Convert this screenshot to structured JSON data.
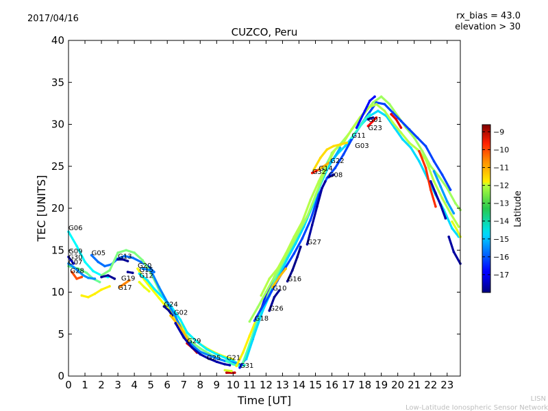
{
  "header": {
    "date": "2017/04/16",
    "rx_bias": "rx_bias = 43.0",
    "elevation": "elevation > 30"
  },
  "footer": {
    "org_short": "LISN",
    "org_full": "Low-Latitude Ionospheric Sensor Network"
  },
  "chart_data": {
    "type": "scatter",
    "title": "CUZCO, Peru",
    "xlabel": "Time [UT]",
    "ylabel": "TEC [UNITS]",
    "xlim": [
      0,
      23.8
    ],
    "ylim": [
      0,
      40
    ],
    "xticks": [
      0,
      1,
      2,
      3,
      4,
      5,
      6,
      7,
      8,
      9,
      10,
      11,
      12,
      13,
      14,
      15,
      16,
      17,
      18,
      19,
      20,
      21,
      22,
      23
    ],
    "yticks": [
      0,
      5,
      10,
      15,
      20,
      25,
      30,
      35,
      40
    ],
    "grid": false,
    "colorbar": {
      "label": "Latitude",
      "min": -18,
      "max": -8.6,
      "ticks": [
        -17,
        -16,
        -15,
        -14,
        -13,
        -12,
        -11,
        -10,
        -9
      ],
      "tick_labels": [
        "−17",
        "−16",
        "−15",
        "−14",
        "−13",
        "−12",
        "−11",
        "−10",
        "−9"
      ]
    },
    "labels": [
      {
        "text": "G06",
        "x": 0.0,
        "y": 17.4
      },
      {
        "text": "G09",
        "x": 0.0,
        "y": 14.6
      },
      {
        "text": "G30",
        "x": 0.0,
        "y": 13.9
      },
      {
        "text": "G07",
        "x": 0.0,
        "y": 13.3
      },
      {
        "text": "G05",
        "x": 1.4,
        "y": 14.4
      },
      {
        "text": "G28",
        "x": 0.1,
        "y": 12.3
      },
      {
        "text": "G13",
        "x": 3.0,
        "y": 14.0
      },
      {
        "text": "G20",
        "x": 4.2,
        "y": 12.9
      },
      {
        "text": "G15",
        "x": 4.3,
        "y": 12.4
      },
      {
        "text": "G12",
        "x": 4.3,
        "y": 11.7
      },
      {
        "text": "G19",
        "x": 3.2,
        "y": 11.4
      },
      {
        "text": "G17",
        "x": 3.0,
        "y": 10.3
      },
      {
        "text": "G24",
        "x": 5.8,
        "y": 8.3
      },
      {
        "text": "G02",
        "x": 6.4,
        "y": 7.3
      },
      {
        "text": "G29",
        "x": 7.2,
        "y": 3.9
      },
      {
        "text": "G25",
        "x": 8.4,
        "y": 1.9
      },
      {
        "text": "G21",
        "x": 9.6,
        "y": 1.9
      },
      {
        "text": "G31",
        "x": 10.4,
        "y": 1.0
      },
      {
        "text": "G18",
        "x": 11.3,
        "y": 6.6
      },
      {
        "text": "G26",
        "x": 12.2,
        "y": 7.8
      },
      {
        "text": "G10",
        "x": 12.4,
        "y": 10.2
      },
      {
        "text": "G16",
        "x": 13.3,
        "y": 11.3
      },
      {
        "text": "G27",
        "x": 14.5,
        "y": 15.7
      },
      {
        "text": "G32",
        "x": 14.8,
        "y": 24.1
      },
      {
        "text": "G14",
        "x": 15.2,
        "y": 24.5
      },
      {
        "text": "G22",
        "x": 15.9,
        "y": 25.4
      },
      {
        "text": "G08",
        "x": 15.8,
        "y": 23.7
      },
      {
        "text": "G11",
        "x": 17.2,
        "y": 28.4
      },
      {
        "text": "G03",
        "x": 17.4,
        "y": 27.2
      },
      {
        "text": "G01",
        "x": 18.2,
        "y": 30.3
      },
      {
        "text": "G23",
        "x": 18.2,
        "y": 29.3
      }
    ],
    "series": [
      {
        "lat": -14.5,
        "x": [
          0.0,
          0.5,
          1.0,
          1.5,
          2.0,
          2.4
        ],
        "y": [
          17.2,
          15.5,
          13.6,
          12.5,
          12.0,
          11.8
        ]
      },
      {
        "lat": -13.5,
        "x": [
          0.0,
          0.6,
          1.1,
          1.5,
          1.9
        ],
        "y": [
          13.1,
          12.8,
          12.3,
          11.6,
          11.2
        ]
      },
      {
        "lat": -17.0,
        "x": [
          0.0,
          0.3
        ],
        "y": [
          14.2,
          13.4
        ]
      },
      {
        "lat": -15.5,
        "x": [
          0.0,
          0.3,
          0.6,
          0.9,
          1.2,
          1.6
        ],
        "y": [
          13.4,
          13.0,
          12.5,
          12.0,
          11.7,
          11.6
        ]
      },
      {
        "lat": -10.5,
        "x": [
          0.2,
          0.5,
          0.8
        ],
        "y": [
          12.4,
          11.6,
          11.8
        ]
      },
      {
        "lat": -12.0,
        "x": [
          0.8,
          1.2,
          1.6,
          2.0,
          2.5
        ],
        "y": [
          9.6,
          9.4,
          9.8,
          10.3,
          10.7
        ]
      },
      {
        "lat": -15.8,
        "x": [
          1.4,
          1.8,
          2.2,
          2.6,
          3.0,
          3.4,
          3.9,
          4.4,
          4.9,
          5.2
        ],
        "y": [
          14.4,
          13.6,
          13.1,
          13.3,
          14.0,
          14.3,
          14.1,
          13.6,
          13.0,
          12.4
        ]
      },
      {
        "lat": -13.3,
        "x": [
          2.0,
          2.5,
          3.0,
          3.5,
          4.0,
          4.5,
          5.0,
          5.5,
          6.0,
          6.5,
          7.0,
          7.5,
          8.0,
          8.5,
          9.0,
          9.5,
          10.0,
          10.5
        ],
        "y": [
          12.0,
          12.6,
          14.7,
          15.0,
          14.7,
          13.8,
          12.3,
          10.3,
          8.5,
          7.0,
          5.3,
          4.0,
          3.3,
          2.7,
          2.2,
          1.8,
          1.5,
          1.3
        ]
      },
      {
        "lat": -12.2,
        "x": [
          4.2,
          4.6,
          5.0,
          5.5,
          6.0,
          6.5,
          7.0,
          7.5,
          8.0,
          8.5,
          9.0,
          9.5,
          10.0
        ],
        "y": [
          12.8,
          11.5,
          10.5,
          9.3,
          8.1,
          6.9,
          5.6,
          4.6,
          3.8,
          3.2,
          2.7,
          2.3,
          2.0
        ]
      },
      {
        "lat": -14.6,
        "x": [
          4.3,
          4.8,
          5.2,
          5.8,
          6.2,
          6.8,
          7.2,
          7.8,
          8.4,
          9.0,
          9.6,
          10.2
        ],
        "y": [
          12.2,
          11.4,
          10.4,
          9.2,
          8.4,
          6.7,
          5.2,
          4.1,
          3.2,
          2.6,
          2.1,
          1.6
        ]
      },
      {
        "lat": -15.6,
        "x": [
          4.5,
          5.0,
          5.5,
          6.0,
          6.5,
          7.0,
          7.5,
          8.0,
          8.5,
          9.0,
          9.5,
          10.0,
          10.4
        ],
        "y": [
          12.8,
          12.6,
          10.6,
          8.8,
          7.1,
          5.0,
          3.7,
          2.9,
          2.5,
          2.1,
          1.8,
          1.6,
          1.4
        ]
      },
      {
        "lat": -17.8,
        "x": [
          2.0,
          2.4,
          2.8
        ],
        "y": [
          11.8,
          12.0,
          11.6
        ]
      },
      {
        "lat": -17.8,
        "x": [
          3.0,
          3.3,
          3.6
        ],
        "y": [
          13.9,
          13.9,
          13.7
        ]
      },
      {
        "lat": -17.8,
        "x": [
          3.6,
          3.9
        ],
        "y": [
          12.4,
          12.3
        ]
      },
      {
        "lat": -11.0,
        "x": [
          3.1,
          3.4,
          3.7
        ],
        "y": [
          10.6,
          11.0,
          11.4
        ]
      },
      {
        "lat": -12.3,
        "x": [
          4.3,
          4.6,
          4.9
        ],
        "y": [
          11.2,
          10.6,
          10.1
        ]
      },
      {
        "lat": -17.9,
        "x": [
          5.8,
          6.1,
          6.3
        ],
        "y": [
          8.3,
          7.8,
          7.2
        ]
      },
      {
        "lat": -11.5,
        "x": [
          6.2,
          6.7,
          7.0,
          7.3
        ],
        "y": [
          7.2,
          6.0,
          5.2,
          4.2
        ]
      },
      {
        "lat": -9.5,
        "x": [
          7.2,
          7.5,
          7.8
        ],
        "y": [
          3.9,
          3.4,
          2.8
        ]
      },
      {
        "lat": -17.6,
        "x": [
          6.5,
          7.0,
          7.5,
          8.0,
          8.5,
          9.0,
          9.5,
          9.8
        ],
        "y": [
          6.3,
          4.6,
          3.4,
          2.6,
          2.1,
          1.7,
          1.4,
          1.3
        ]
      },
      {
        "lat": -9.2,
        "x": [
          9.6,
          9.9,
          10.1
        ],
        "y": [
          0.4,
          0.4,
          0.4
        ]
      },
      {
        "lat": -12.5,
        "x": [
          9.5,
          9.9
        ],
        "y": [
          0.7,
          0.6
        ]
      },
      {
        "lat": -14.0,
        "x": [
          9.6,
          10.0,
          10.4,
          10.7
        ],
        "y": [
          1.8,
          1.4,
          1.2,
          1.3
        ]
      },
      {
        "lat": -12.0,
        "x": [
          10.2,
          10.6,
          11.0,
          11.5,
          12.0,
          12.5,
          13.0,
          13.4
        ],
        "y": [
          1.2,
          2.8,
          4.8,
          7.2,
          9.5,
          11.5,
          13.6,
          14.8
        ]
      },
      {
        "lat": -16.6,
        "x": [
          10.4,
          10.8,
          11.2,
          11.6,
          12.0,
          12.5,
          13.0,
          13.5,
          14.0,
          14.5,
          15.0
        ],
        "y": [
          1.0,
          2.2,
          4.4,
          7.2,
          9.8,
          11.8,
          13.6,
          15.4,
          17.2,
          19.0,
          21.2
        ]
      },
      {
        "lat": -13.7,
        "x": [
          10.6,
          11.0,
          11.5,
          12.0,
          12.5,
          13.0,
          13.5,
          14.0,
          14.5,
          15.0,
          15.5,
          16.0
        ],
        "y": [
          1.6,
          3.8,
          6.8,
          9.0,
          11.2,
          13.4,
          15.2,
          17.0,
          18.8,
          21.0,
          24.6,
          26.5
        ]
      },
      {
        "lat": -14.8,
        "x": [
          10.8,
          11.3,
          11.8,
          12.3,
          12.8,
          13.3,
          13.8,
          14.3,
          14.8,
          15.3,
          15.8,
          16.3,
          16.8,
          17.3,
          17.8,
          18.3,
          18.8,
          19.3,
          19.8,
          20.3,
          20.8,
          21.3,
          21.8,
          22.3,
          22.8,
          23.3,
          23.7
        ],
        "y": [
          2.0,
          5.0,
          7.8,
          10.0,
          12.0,
          14.0,
          15.8,
          17.8,
          20.2,
          22.8,
          25.0,
          26.4,
          27.4,
          28.6,
          30.0,
          31.0,
          31.6,
          31.0,
          29.6,
          28.2,
          27.2,
          25.6,
          23.6,
          21.6,
          19.8,
          17.6,
          16.6
        ]
      },
      {
        "lat": -13.0,
        "x": [
          11.0,
          11.5,
          12.0,
          12.5,
          13.0,
          13.5,
          14.0,
          14.5,
          15.0,
          15.5,
          16.0,
          16.5,
          17.0,
          17.5,
          18.0,
          18.5,
          19.0,
          19.5,
          20.0,
          20.5,
          21.0,
          21.5,
          22.0,
          22.5,
          23.0,
          23.5,
          23.8
        ],
        "y": [
          6.5,
          8.2,
          10.0,
          11.8,
          13.6,
          15.4,
          17.2,
          19.0,
          21.5,
          24.0,
          26.6,
          27.6,
          28.8,
          30.2,
          31.4,
          32.6,
          33.3,
          32.4,
          31.0,
          29.6,
          28.4,
          26.8,
          25.0,
          23.8,
          22.4,
          20.6,
          19.8
        ]
      },
      {
        "lat": -16.2,
        "x": [
          11.3,
          11.7,
          12.2,
          12.7,
          13.2,
          13.7,
          14.2,
          14.7,
          15.2,
          15.7,
          16.2,
          16.7,
          17.2,
          17.7,
          18.2,
          18.7,
          19.2,
          19.7,
          20.2,
          20.7,
          21.2,
          21.7,
          22.2,
          22.7,
          23.2
        ],
        "y": [
          6.6,
          8.0,
          9.6,
          11.4,
          13.0,
          14.6,
          16.4,
          18.6,
          21.6,
          23.6,
          24.8,
          26.4,
          28.2,
          29.8,
          31.2,
          32.6,
          32.4,
          31.4,
          30.4,
          29.4,
          28.4,
          27.4,
          25.6,
          24.0,
          22.2
        ]
      },
      {
        "lat": -12.8,
        "x": [
          11.7,
          12.2,
          12.7,
          13.2,
          13.7,
          14.2,
          14.7,
          15.2,
          15.7,
          16.2,
          16.7,
          17.2,
          17.7,
          18.2,
          18.7,
          19.2,
          19.7,
          20.2,
          20.7,
          21.2,
          21.7,
          22.2,
          22.7,
          23.2,
          23.7
        ],
        "y": [
          9.6,
          11.6,
          12.8,
          14.6,
          16.6,
          18.4,
          21.0,
          23.2,
          25.2,
          27.0,
          27.8,
          29.4,
          30.8,
          32.0,
          32.4,
          31.6,
          30.2,
          29.0,
          27.8,
          27.0,
          25.8,
          23.2,
          21.2,
          19.4,
          17.8
        ]
      },
      {
        "lat": -17.8,
        "x": [
          12.2,
          12.5,
          12.8
        ],
        "y": [
          7.8,
          9.4,
          10.2
        ]
      },
      {
        "lat": -17.9,
        "x": [
          13.3,
          13.6,
          13.9,
          14.1
        ],
        "y": [
          11.3,
          12.6,
          14.2,
          15.4
        ]
      },
      {
        "lat": -11.5,
        "x": [
          12.4,
          12.8,
          13.2
        ],
        "y": [
          10.6,
          11.8,
          12.8
        ]
      },
      {
        "lat": -17.7,
        "x": [
          14.5,
          14.8,
          15.1,
          15.4,
          15.6
        ],
        "y": [
          15.7,
          18.0,
          20.2,
          22.4,
          23.2
        ]
      },
      {
        "lat": -10.0,
        "x": [
          14.8,
          15.2
        ],
        "y": [
          24.2,
          24.6
        ]
      },
      {
        "lat": -11.4,
        "x": [
          15.2,
          15.5,
          15.8
        ],
        "y": [
          24.6,
          25.0,
          25.4
        ]
      },
      {
        "lat": -17.5,
        "x": [
          15.8,
          16.1
        ],
        "y": [
          23.7,
          24.0
        ]
      },
      {
        "lat": -15.2,
        "x": [
          15.9,
          16.2,
          16.5
        ],
        "y": [
          25.4,
          26.2,
          27.2
        ]
      },
      {
        "lat": -11.8,
        "x": [
          14.9,
          15.3,
          15.7,
          16.1,
          16.5,
          16.9
        ],
        "y": [
          24.6,
          26.0,
          27.0,
          27.4,
          27.6,
          27.8
        ]
      },
      {
        "lat": -14.0,
        "x": [
          17.2,
          17.6,
          18.0,
          18.3
        ],
        "y": [
          28.4,
          29.5,
          30.6,
          31.2
        ]
      },
      {
        "lat": -16.8,
        "x": [
          17.5,
          18.0,
          18.3,
          18.6
        ],
        "y": [
          29.6,
          31.6,
          32.8,
          33.3
        ]
      },
      {
        "lat": -9.8,
        "x": [
          18.2,
          18.5,
          18.7
        ],
        "y": [
          29.8,
          30.4,
          30.8
        ]
      },
      {
        "lat": -17.6,
        "x": [
          18.2,
          18.5
        ],
        "y": [
          30.6,
          30.8
        ]
      },
      {
        "lat": -9.5,
        "x": [
          19.6,
          19.9,
          20.2
        ],
        "y": [
          31.2,
          30.6,
          29.6
        ]
      },
      {
        "lat": -10.2,
        "x": [
          21.3,
          21.7,
          22.0,
          22.3
        ],
        "y": [
          26.8,
          24.8,
          22.2,
          20.2
        ]
      },
      {
        "lat": -17.6,
        "x": [
          22.0,
          22.3,
          22.6,
          22.9
        ],
        "y": [
          23.2,
          21.8,
          20.4,
          18.8
        ]
      },
      {
        "lat": -17.7,
        "x": [
          23.1,
          23.4,
          23.8
        ],
        "y": [
          16.6,
          14.8,
          13.4
        ]
      },
      {
        "lat": -12.4,
        "x": [
          23.3,
          23.6,
          23.8
        ],
        "y": [
          18.4,
          17.4,
          16.6
        ]
      },
      {
        "lat": -15.4,
        "x": [
          22.2,
          22.6,
          23.0,
          23.4
        ],
        "y": [
          24.4,
          22.6,
          20.8,
          19.4
        ]
      }
    ]
  }
}
